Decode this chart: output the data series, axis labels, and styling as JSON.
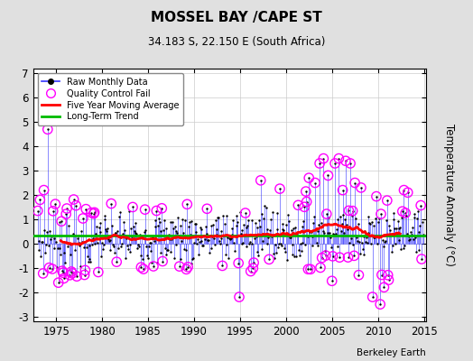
{
  "title": "MOSSEL BAY /CAPE ST",
  "subtitle": "34.183 S, 22.150 E (South Africa)",
  "ylabel": "Temperature Anomaly (°C)",
  "watermark": "Berkeley Earth",
  "xlim": [
    1972.5,
    2015.2
  ],
  "ylim": [
    -3.2,
    7.2
  ],
  "yticks": [
    -3,
    -2,
    -1,
    0,
    1,
    2,
    3,
    4,
    5,
    6,
    7
  ],
  "xticks": [
    1975,
    1980,
    1985,
    1990,
    1995,
    2000,
    2005,
    2010,
    2015
  ],
  "bg_color": "#e0e0e0",
  "plot_bg_color": "#ffffff",
  "raw_line_color": "#3333ff",
  "raw_marker_color": "#000000",
  "qc_fail_color": "#ff00ff",
  "moving_avg_color": "#ff0000",
  "trend_color": "#00bb00",
  "green_line_y": 0.32,
  "seed": 7
}
